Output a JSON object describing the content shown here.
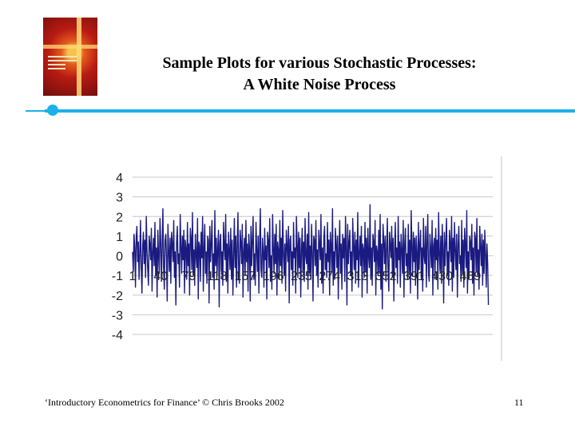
{
  "slide": {
    "title_line1": "Sample Plots for various Stochastic Processes:",
    "title_line2": "A White Noise Process",
    "footer": "‘Introductory Econometrics for Finance’ © Chris Brooks 2002",
    "page_number": "11"
  },
  "colors": {
    "accent_bar": "#1cb0e8",
    "series_line": "#1a1a80",
    "grid": "#c8c8c8"
  },
  "chart_data": {
    "type": "line",
    "title": "",
    "xlabel": "",
    "ylabel": "",
    "ylim": [
      -4,
      4
    ],
    "y_ticks": [
      "4",
      "3",
      "2",
      "1",
      "0",
      "-1",
      "-2",
      "-3",
      "-4"
    ],
    "x_tick_labels": [
      "1",
      "40",
      "79",
      "118",
      "157",
      "196",
      "235",
      "274",
      "313",
      "352",
      "391",
      "430",
      "469"
    ],
    "x_count": 500,
    "grid": "horizontal",
    "legend": "none",
    "series": [
      {
        "values": [
          0.2,
          -0.8,
          1.1,
          0.4,
          -1.6,
          0.9,
          1.5,
          -0.3,
          0.7,
          -1.2,
          0.1,
          1.8,
          -0.6,
          -1.9,
          0.5,
          1.2,
          -0.4,
          0.8,
          -1.1,
          2.0,
          0.3,
          -0.7,
          -1.5,
          1.0,
          0.6,
          -0.2,
          1.4,
          -1.8,
          0.2,
          0.9,
          -0.5,
          1.7,
          -1.0,
          0.4,
          -2.1,
          1.3,
          0.0,
          -0.9,
          1.9,
          0.7,
          -1.3,
          0.5,
          2.4,
          -0.6,
          -1.7,
          0.8,
          1.1,
          -0.1,
          -2.3,
          1.6,
          0.3,
          -0.8,
          0.9,
          -1.4,
          1.2,
          0.6,
          -0.3,
          1.8,
          -1.1,
          0.2,
          -2.5,
          0.7,
          1.5,
          -0.4,
          0.1,
          -1.6,
          2.1,
          0.5,
          -0.9,
          1.0,
          -0.2,
          1.3,
          -1.9,
          0.8,
          0.4,
          -1.2,
          1.7,
          -0.5,
          0.6,
          -2.0,
          1.4,
          0.9,
          -0.7,
          2.2,
          -1.0,
          0.3,
          -1.5,
          1.1,
          0.0,
          -0.6,
          1.9,
          -2.2,
          0.7,
          0.5,
          -1.3,
          1.2,
          -0.1,
          2.0,
          -1.8,
          0.4,
          1.6,
          -0.9,
          0.2,
          -1.4,
          1.0,
          0.8,
          -2.4,
          1.5,
          -0.3,
          0.6,
          1.8,
          -1.1,
          0.1,
          -1.7,
          2.3,
          -0.5,
          0.9,
          -1.0,
          0.4,
          1.3,
          -2.6,
          0.7,
          1.1,
          -0.8,
          0.2,
          -1.5,
          1.7,
          0.5,
          -0.2,
          2.1,
          -1.3,
          0.6,
          -1.9,
          1.2,
          0.3,
          -0.7,
          1.4,
          -1.2,
          0.8,
          -2.0,
          0.0,
          1.9,
          -0.6,
          1.0,
          -1.6,
          0.5,
          2.2,
          -0.9,
          -1.4,
          1.3,
          0.7,
          -0.4,
          1.6,
          -2.1,
          0.2,
          0.9,
          -1.0,
          1.8,
          -0.3,
          0.6,
          -1.8,
          1.1,
          0.4,
          -2.3,
          1.5,
          -0.5,
          0.8,
          2.0,
          -1.2,
          0.1,
          -1.5,
          1.7,
          0.3,
          -0.8,
          1.0,
          -1.9,
          0.6,
          2.4,
          -0.7,
          -1.1,
          0.9,
          0.2,
          -1.6,
          1.4,
          -0.2,
          0.5,
          -2.2,
          1.2,
          0.8,
          -0.6,
          1.9,
          -1.3,
          0.0,
          -1.7,
          2.1,
          0.4,
          -0.9,
          1.1,
          -0.4,
          1.6,
          -2.0,
          0.7,
          0.3,
          -1.2,
          1.8,
          -0.5,
          0.9,
          -1.4,
          2.3,
          0.1,
          -1.0,
          0.6,
          -1.8,
          1.3,
          0.5,
          -0.3,
          1.5,
          -2.4,
          0.8,
          1.0,
          -0.7,
          0.2,
          -1.5,
          1.7,
          -0.1,
          0.4,
          -1.9,
          2.0,
          0.6,
          -1.1,
          1.2,
          -0.6,
          0.9,
          -2.1,
          0.3,
          1.4,
          -0.8,
          0.7,
          -1.3,
          1.9,
          0.0,
          -0.4,
          1.1,
          -1.7,
          2.2,
          -0.9,
          0.5,
          -1.2,
          1.6,
          0.2,
          -2.3,
          1.0,
          0.8,
          -0.5,
          1.8,
          -1.0,
          0.3,
          -1.6,
          1.3,
          0.6,
          -0.2,
          2.1,
          -1.4,
          0.4,
          -1.9,
          0.9,
          1.5,
          -0.7,
          0.1,
          -1.1,
          1.7,
          -0.3,
          0.8,
          -2.0,
          1.2,
          0.5,
          -0.8,
          2.4,
          -1.5,
          0.2,
          -1.2,
          1.4,
          0.7,
          -0.6,
          1.0,
          -2.2,
          0.3,
          1.8,
          -0.9,
          0.6,
          -1.7,
          1.1,
          -0.1,
          0.9,
          -1.3,
          2.0,
          0.4,
          -2.5,
          1.6,
          -0.4,
          0.7,
          1.3,
          -1.0,
          0.2,
          -1.8,
          1.9,
          0.5,
          -0.7,
          1.2,
          -1.4,
          0.8,
          -0.2,
          2.2,
          -1.6,
          0.1,
          1.0,
          -0.5,
          1.5,
          -2.1,
          0.6,
          0.3,
          -1.1,
          1.7,
          -0.8,
          0.9,
          -1.9,
          1.4,
          0.0,
          -0.6,
          2.6,
          -1.2,
          0.4,
          -1.5,
          1.1,
          0.7,
          -0.3,
          1.8,
          -2.0,
          0.5,
          0.2,
          -1.0,
          1.3,
          -0.9,
          2.1,
          -1.7,
          0.6,
          -2.7,
          1.6,
          0.8,
          -0.4,
          1.0,
          -1.3,
          0.3,
          1.9,
          -0.7,
          -1.8,
          1.2,
          0.5,
          -0.1,
          1.5,
          -1.1,
          0.9,
          -2.3,
          0.2,
          1.7,
          -0.6,
          0.4,
          -1.4,
          2.0,
          -0.2,
          0.7,
          -1.6,
          1.1,
          0.3,
          -0.9,
          1.8,
          -2.1,
          0.6,
          1.4,
          -0.5,
          0.1,
          -1.2,
          1.6,
          -0.8,
          0.8,
          -1.9,
          2.3,
          0.5,
          -1.0,
          1.2,
          -0.3,
          0.9,
          -1.5,
          1.0,
          0.2,
          -2.2,
          1.7,
          -0.7,
          0.6,
          1.3,
          -1.1,
          0.4,
          -1.8,
          1.9,
          0.0,
          -0.4,
          1.5,
          -1.6,
          0.7,
          2.1,
          -0.9,
          -1.3,
          1.1,
          0.3,
          -0.6,
          1.8,
          -2.0,
          0.5,
          0.9,
          -1.2,
          1.4,
          -0.2,
          0.8,
          -1.7,
          2.2,
          0.1,
          -0.8,
          1.0,
          -1.4,
          1.6,
          0.4,
          -2.4,
          1.2,
          -0.5,
          0.7,
          1.9,
          -1.0,
          0.2,
          -1.5,
          1.3,
          0.6,
          -0.3,
          2.0,
          -1.8,
          0.9,
          -1.1,
          1.7,
          0.3,
          -0.7,
          1.1,
          -2.1,
          0.5,
          1.5,
          -0.4,
          0.0,
          -1.3,
          1.8,
          -0.9,
          0.8,
          -1.6,
          1.4,
          0.6,
          -0.6,
          2.3,
          -1.9,
          0.2,
          -1.2,
          1.0,
          0.7,
          -0.2,
          1.6,
          -1.4,
          0.4,
          -2.0,
          1.2,
          0.9,
          -0.8,
          1.9,
          -1.0,
          0.3,
          -1.7,
          1.5,
          0.5,
          -0.5,
          1.1,
          -1.5,
          0.8,
          -0.9,
          1.3,
          0.1,
          -1.6,
          0.6,
          -0.4,
          -2.5
        ]
      }
    ]
  }
}
